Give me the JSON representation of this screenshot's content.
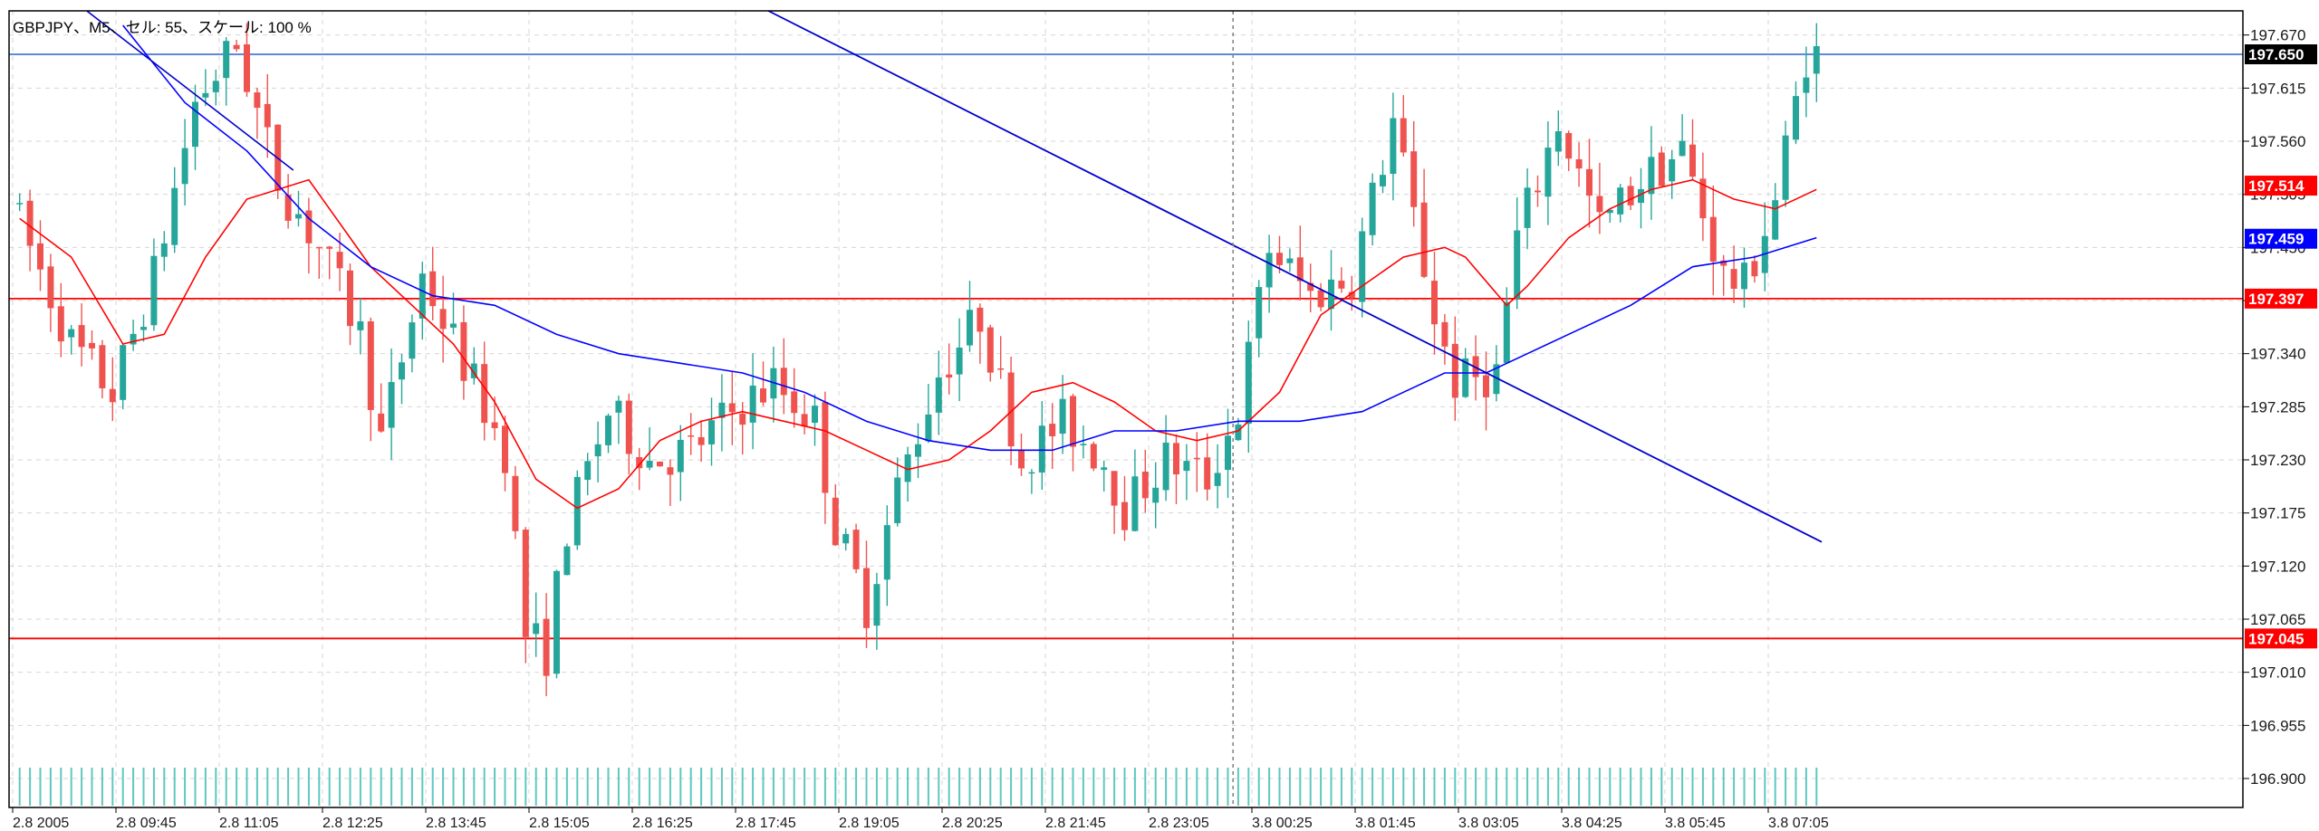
{
  "header": {
    "title": "GBPJPY、M5、セル: 55、スケール: 100 %"
  },
  "colors": {
    "background": "#ffffff",
    "grid": "#d6d6d6",
    "bull_candle": "#26a69a",
    "bear_candle": "#ef5350",
    "ma_fast": "#ff0000",
    "ma_slow": "#0000ff",
    "volume_bar": "#5fc7bf",
    "horizontal_red": "#ff0000",
    "horizontal_blue": "#4a78d8",
    "trendline": "#0000cc",
    "axis_frame": "#000000"
  },
  "chart_data": {
    "type": "candlestick",
    "symbol": "GBPJPY",
    "timeframe": "M5",
    "grid": true,
    "ylim": [
      196.87,
      197.695
    ],
    "y_ticks": [
      "197.670",
      "197.615",
      "197.560",
      "197.505",
      "197.450",
      "197.395",
      "197.340",
      "197.285",
      "197.230",
      "197.175",
      "197.120",
      "197.065",
      "197.010",
      "196.955",
      "196.900"
    ],
    "x_tick_labels": [
      "2.8 2005",
      "2.8 09:45",
      "2.8 11:05",
      "2.8 12:25",
      "2.8 13:45",
      "2.8 15:05",
      "2.8 16:25",
      "2.8 17:45",
      "2.8 19:05",
      "2.8 20:25",
      "2.8 21:45",
      "2.8 23:05",
      "3.8 00:25",
      "3.8 01:45",
      "3.8 03:05",
      "3.8 04:25",
      "3.8 05:45",
      "3.8 07:05"
    ],
    "bars_count": 175,
    "price_markers": [
      {
        "label": "197.650",
        "value": 197.65,
        "style": "current",
        "color": "#000000"
      },
      {
        "label": "197.514",
        "value": 197.514,
        "style": "ma_fast",
        "color": "#ff0000"
      },
      {
        "label": "197.459",
        "value": 197.459,
        "style": "ma_slow",
        "color": "#0000ff"
      },
      {
        "label": "197.397",
        "value": 197.397,
        "style": "level",
        "color": "#ff0000"
      },
      {
        "label": "197.045",
        "value": 197.045,
        "style": "level",
        "color": "#ff0000"
      }
    ],
    "horizontal_lines": [
      {
        "value": 197.65,
        "color": "#4a78d8"
      },
      {
        "value": 197.397,
        "color": "#ff0000"
      },
      {
        "value": 197.045,
        "color": "#ff0000"
      }
    ],
    "trendlines": [
      {
        "from": {
          "bar": 73,
          "price": 197.695
        },
        "to": {
          "bar": 175,
          "price": 197.145
        },
        "color": "#0000cc"
      }
    ],
    "vertical_marker_bar": 118,
    "price_path": [
      [
        0,
        197.5
      ],
      [
        6,
        197.35
      ],
      [
        10,
        197.3
      ],
      [
        14,
        197.42
      ],
      [
        18,
        197.6
      ],
      [
        22,
        197.66
      ],
      [
        26,
        197.52
      ],
      [
        30,
        197.45
      ],
      [
        34,
        197.36
      ],
      [
        36,
        197.25
      ],
      [
        40,
        197.42
      ],
      [
        44,
        197.33
      ],
      [
        48,
        197.24
      ],
      [
        50,
        197.05
      ],
      [
        52,
        197.03
      ],
      [
        54,
        197.16
      ],
      [
        58,
        197.28
      ],
      [
        62,
        197.23
      ],
      [
        66,
        197.24
      ],
      [
        70,
        197.28
      ],
      [
        74,
        197.31
      ],
      [
        78,
        197.27
      ],
      [
        80,
        197.16
      ],
      [
        83,
        197.08
      ],
      [
        86,
        197.2
      ],
      [
        90,
        197.32
      ],
      [
        94,
        197.38
      ],
      [
        98,
        197.23
      ],
      [
        102,
        197.27
      ],
      [
        106,
        197.23
      ],
      [
        108,
        197.18
      ],
      [
        112,
        197.23
      ],
      [
        116,
        197.21
      ],
      [
        119,
        197.28
      ],
      [
        122,
        197.45
      ],
      [
        126,
        197.4
      ],
      [
        130,
        197.42
      ],
      [
        134,
        197.58
      ],
      [
        138,
        197.38
      ],
      [
        140,
        197.31
      ],
      [
        144,
        197.32
      ],
      [
        146,
        197.46
      ],
      [
        150,
        197.58
      ],
      [
        154,
        197.47
      ],
      [
        158,
        197.52
      ],
      [
        162,
        197.55
      ],
      [
        166,
        197.42
      ],
      [
        168,
        197.41
      ],
      [
        171,
        197.5
      ],
      [
        174,
        197.65
      ]
    ],
    "ma_fast_points": [
      [
        0,
        197.48
      ],
      [
        5,
        197.44
      ],
      [
        10,
        197.35
      ],
      [
        14,
        197.36
      ],
      [
        18,
        197.44
      ],
      [
        22,
        197.5
      ],
      [
        28,
        197.52
      ],
      [
        34,
        197.43
      ],
      [
        38,
        197.39
      ],
      [
        42,
        197.35
      ],
      [
        46,
        197.29
      ],
      [
        50,
        197.21
      ],
      [
        54,
        197.18
      ],
      [
        58,
        197.2
      ],
      [
        62,
        197.25
      ],
      [
        66,
        197.27
      ],
      [
        70,
        197.28
      ],
      [
        74,
        197.27
      ],
      [
        78,
        197.26
      ],
      [
        82,
        197.24
      ],
      [
        86,
        197.22
      ],
      [
        90,
        197.23
      ],
      [
        94,
        197.26
      ],
      [
        98,
        197.3
      ],
      [
        102,
        197.31
      ],
      [
        106,
        197.29
      ],
      [
        110,
        197.26
      ],
      [
        114,
        197.25
      ],
      [
        118,
        197.26
      ],
      [
        122,
        197.3
      ],
      [
        126,
        197.38
      ],
      [
        130,
        197.41
      ],
      [
        134,
        197.44
      ],
      [
        138,
        197.45
      ],
      [
        140,
        197.44
      ],
      [
        144,
        197.39
      ],
      [
        146,
        197.41
      ],
      [
        150,
        197.46
      ],
      [
        154,
        197.49
      ],
      [
        158,
        197.51
      ],
      [
        162,
        197.52
      ],
      [
        166,
        197.5
      ],
      [
        170,
        197.49
      ],
      [
        174,
        197.51
      ]
    ],
    "ma_slow_points": [
      [
        10,
        197.68
      ],
      [
        16,
        197.6
      ],
      [
        22,
        197.55
      ],
      [
        28,
        197.48
      ],
      [
        34,
        197.43
      ],
      [
        40,
        197.4
      ],
      [
        46,
        197.39
      ],
      [
        52,
        197.36
      ],
      [
        58,
        197.34
      ],
      [
        64,
        197.33
      ],
      [
        70,
        197.32
      ],
      [
        76,
        197.3
      ],
      [
        82,
        197.27
      ],
      [
        88,
        197.25
      ],
      [
        94,
        197.24
      ],
      [
        100,
        197.24
      ],
      [
        106,
        197.26
      ],
      [
        112,
        197.26
      ],
      [
        118,
        197.27
      ],
      [
        124,
        197.27
      ],
      [
        130,
        197.28
      ],
      [
        134,
        197.3
      ],
      [
        138,
        197.32
      ],
      [
        142,
        197.32
      ],
      [
        146,
        197.34
      ],
      [
        150,
        197.36
      ],
      [
        156,
        197.39
      ],
      [
        162,
        197.43
      ],
      [
        168,
        197.44
      ],
      [
        174,
        197.46
      ]
    ]
  }
}
